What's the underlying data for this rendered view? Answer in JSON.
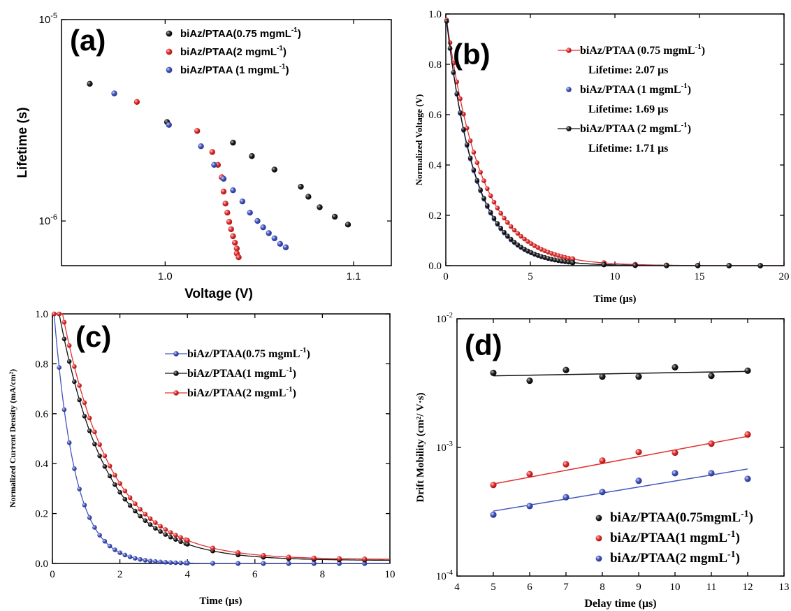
{
  "chart_data": [
    {
      "panel": "(a)",
      "type": "scatter",
      "xlabel": "Voltage (V)",
      "ylabel": "Lifetime (s)",
      "xlim": [
        0.945,
        1.12
      ],
      "ylim": [
        6e-07,
        1e-05
      ],
      "yscale": "log",
      "xticks": [
        {
          "v": 1.0,
          "label": "1.0"
        },
        {
          "v": 1.1,
          "label": "1.1"
        }
      ],
      "yticks": [
        {
          "v": 1e-06,
          "base": "10",
          "exp": "-6"
        },
        {
          "v": 1e-05,
          "base": "10",
          "exp": "-5"
        }
      ],
      "legend": {
        "position": "top-right",
        "entries": [
          {
            "text": "biAz/PTAA(0.75 mgmL",
            "sup": "-1",
            "tail": ")",
            "color": "#111111"
          },
          {
            "text": "biAz/PTAA(2 mgmL",
            "sup": "-1",
            "tail": ")",
            "color": "#e03030"
          },
          {
            "text": "biAz/PTAA (1 mgmL",
            "sup": "-1",
            "tail": ")",
            "color": "#4455bb"
          }
        ]
      },
      "series": [
        {
          "color": "#111111",
          "points": [
            [
              0.96,
              4.8e-06
            ],
            [
              1.001,
              3.1e-06
            ],
            [
              1.036,
              2.45e-06
            ],
            [
              1.046,
              2.1e-06
            ],
            [
              1.058,
              1.8e-06
            ],
            [
              1.072,
              1.48e-06
            ],
            [
              1.076,
              1.32e-06
            ],
            [
              1.082,
              1.17e-06
            ],
            [
              1.09,
              1.05e-06
            ],
            [
              1.097,
              9.6e-07
            ]
          ]
        },
        {
          "color": "#e03030",
          "points": [
            [
              0.985,
              3.9e-06
            ],
            [
              1.017,
              2.8e-06
            ],
            [
              1.025,
              2.2e-06
            ],
            [
              1.028,
              1.9e-06
            ],
            [
              1.03,
              1.65e-06
            ],
            [
              1.031,
              1.4e-06
            ],
            [
              1.032,
              1.22e-06
            ],
            [
              1.033,
              1.1e-06
            ],
            [
              1.034,
              9.9e-07
            ],
            [
              1.035,
              9.1e-07
            ],
            [
              1.036,
              8.4e-07
            ],
            [
              1.037,
              7.8e-07
            ],
            [
              1.038,
              7.3e-07
            ],
            [
              1.038,
              6.9e-07
            ],
            [
              1.039,
              6.6e-07
            ]
          ]
        },
        {
          "color": "#4455bb",
          "points": [
            [
              0.973,
              4.3e-06
            ],
            [
              1.002,
              3e-06
            ],
            [
              1.019,
              2.35e-06
            ],
            [
              1.026,
              1.9e-06
            ],
            [
              1.031,
              1.62e-06
            ],
            [
              1.036,
              1.42e-06
            ],
            [
              1.041,
              1.25e-06
            ],
            [
              1.045,
              1.1e-06
            ],
            [
              1.049,
              1e-06
            ],
            [
              1.052,
              9.3e-07
            ],
            [
              1.055,
              8.7e-07
            ],
            [
              1.058,
              8.2e-07
            ],
            [
              1.061,
              7.7e-07
            ],
            [
              1.064,
              7.4e-07
            ]
          ]
        }
      ]
    },
    {
      "panel": "(b)",
      "type": "line",
      "xlabel": "Time (μs)",
      "ylabel": "Normalized Voltage (V)",
      "xlim": [
        0,
        20
      ],
      "ylim": [
        0,
        1.0
      ],
      "xticks": [
        0,
        5,
        10,
        15,
        20
      ],
      "yticks": [
        0.0,
        0.2,
        0.4,
        0.6,
        0.8,
        1.0
      ],
      "legend": {
        "position": "top-right",
        "entries": [
          {
            "text": "biAz/PTAA (0.75 mgmL",
            "sup": "-1",
            "tail": ")",
            "color": "#e03030",
            "style": "line"
          },
          {
            "text": "Lifetime: 2.07 μs",
            "sup": "",
            "tail": "",
            "color": "",
            "style": "text"
          },
          {
            "text": "biAz/PTAA (1 mgmL",
            "sup": "-1",
            "tail": ")",
            "color": "#4455bb",
            "style": "dot"
          },
          {
            "text": "Lifetime: 1.69 μs",
            "sup": "",
            "tail": "",
            "color": "",
            "style": "text"
          },
          {
            "text": "biAz/PTAA (2 mgmL",
            "sup": "-1",
            "tail": ")",
            "color": "#111111",
            "style": "line"
          },
          {
            "text": "Lifetime: 1.71 μs",
            "sup": "",
            "tail": "",
            "color": "",
            "style": "text"
          }
        ]
      },
      "series": [
        {
          "color": "#e03030",
          "lifetime_us": 2.07,
          "x_start": 0.05,
          "x_end": 20,
          "dense_marker_step": 0.2,
          "sparse_marker_from": 7.5,
          "sparse_marker_step": 1.85
        },
        {
          "color": "#4455bb",
          "lifetime_us": 1.69,
          "x_start": 0.05,
          "x_end": 20,
          "dense_marker_step": 0.2,
          "sparse_marker_from": 7.5,
          "sparse_marker_step": 1.85
        },
        {
          "color": "#111111",
          "lifetime_us": 1.71,
          "x_start": 0.05,
          "x_end": 20,
          "dense_marker_step": 0.2,
          "sparse_marker_from": 7.5,
          "sparse_marker_step": 1.85
        }
      ]
    },
    {
      "panel": "(c)",
      "type": "line",
      "xlabel": "Time (μs)",
      "ylabel": "Normalized Current Density (mA/cm²)",
      "xlim": [
        0,
        10
      ],
      "ylim": [
        0,
        1.0
      ],
      "xticks": [
        0,
        2,
        4,
        6,
        8,
        10
      ],
      "yticks": [
        0.0,
        0.2,
        0.4,
        0.6,
        0.8,
        1.0
      ],
      "legend": {
        "position": "center-right",
        "entries": [
          {
            "text": "biAz/PTAA(0.75 mgmL",
            "sup": "-1",
            "tail": ")",
            "color": "#4455bb"
          },
          {
            "text": "biAz/PTAA(1 mgmL",
            "sup": "-1",
            "tail": ")",
            "color": "#111111"
          },
          {
            "text": "biAz/PTAA(2 mgmL",
            "sup": "-1",
            "tail": ")",
            "color": "#e03030"
          }
        ]
      },
      "series": [
        {
          "color": "#4455bb",
          "delay_us": 0.05,
          "tau_us": 0.62,
          "offset": 0.0
        },
        {
          "color": "#111111",
          "delay_us": 0.2,
          "tau_us": 1.4,
          "offset": 0.012
        },
        {
          "color": "#e03030",
          "delay_us": 0.3,
          "tau_us": 1.45,
          "offset": 0.016
        }
      ]
    },
    {
      "panel": "(d)",
      "type": "scatter",
      "xlabel": "Delay time (μs)",
      "ylabel": "Drift Mobility (cm²/ V·s)",
      "xlim": [
        4,
        13
      ],
      "ylim": [
        0.0001,
        0.01
      ],
      "yscale": "log",
      "xticks": [
        4,
        5,
        6,
        7,
        8,
        9,
        10,
        11,
        12,
        13
      ],
      "yticks": [
        {
          "v": 0.0001,
          "base": "10",
          "exp": "-4"
        },
        {
          "v": 0.001,
          "base": "10",
          "exp": "-3"
        },
        {
          "v": 0.01,
          "base": "10",
          "exp": "-2"
        }
      ],
      "legend": {
        "position": "bottom-right",
        "entries": [
          {
            "text": "biAz/PTAA(0.75mgmL",
            "sup": "-1",
            "tail": ")",
            "color": "#111111"
          },
          {
            "text": "biAz/PTAA(1 mgmL",
            "sup": "-1",
            "tail": ")",
            "color": "#e03030"
          },
          {
            "text": "biAz/PTAA(2 mgmL",
            "sup": "-1",
            "tail": ")",
            "color": "#4455bb"
          }
        ]
      },
      "series": [
        {
          "color": "#111111",
          "x": [
            5,
            6,
            7,
            8,
            9,
            10,
            11,
            12
          ],
          "y": [
            0.0038,
            0.0033,
            0.004,
            0.00355,
            0.00355,
            0.0042,
            0.0036,
            0.00395
          ],
          "fit": [
            0.0036,
            0.0039
          ]
        },
        {
          "color": "#e03030",
          "x": [
            5,
            6,
            7,
            8,
            9,
            10,
            11,
            12
          ],
          "y": [
            0.00051,
            0.00062,
            0.00074,
            0.00079,
            0.00092,
            0.00091,
            0.00107,
            0.00126
          ],
          "fit": [
            0.00052,
            0.00122
          ]
        },
        {
          "color": "#4455bb",
          "x": [
            5,
            6,
            7,
            8,
            9,
            10,
            11,
            12
          ],
          "y": [
            0.0003,
            0.00035,
            0.00041,
            0.00045,
            0.00055,
            0.00063,
            0.00063,
            0.00057
          ],
          "fit": [
            0.00032,
            0.00068
          ]
        }
      ]
    }
  ]
}
